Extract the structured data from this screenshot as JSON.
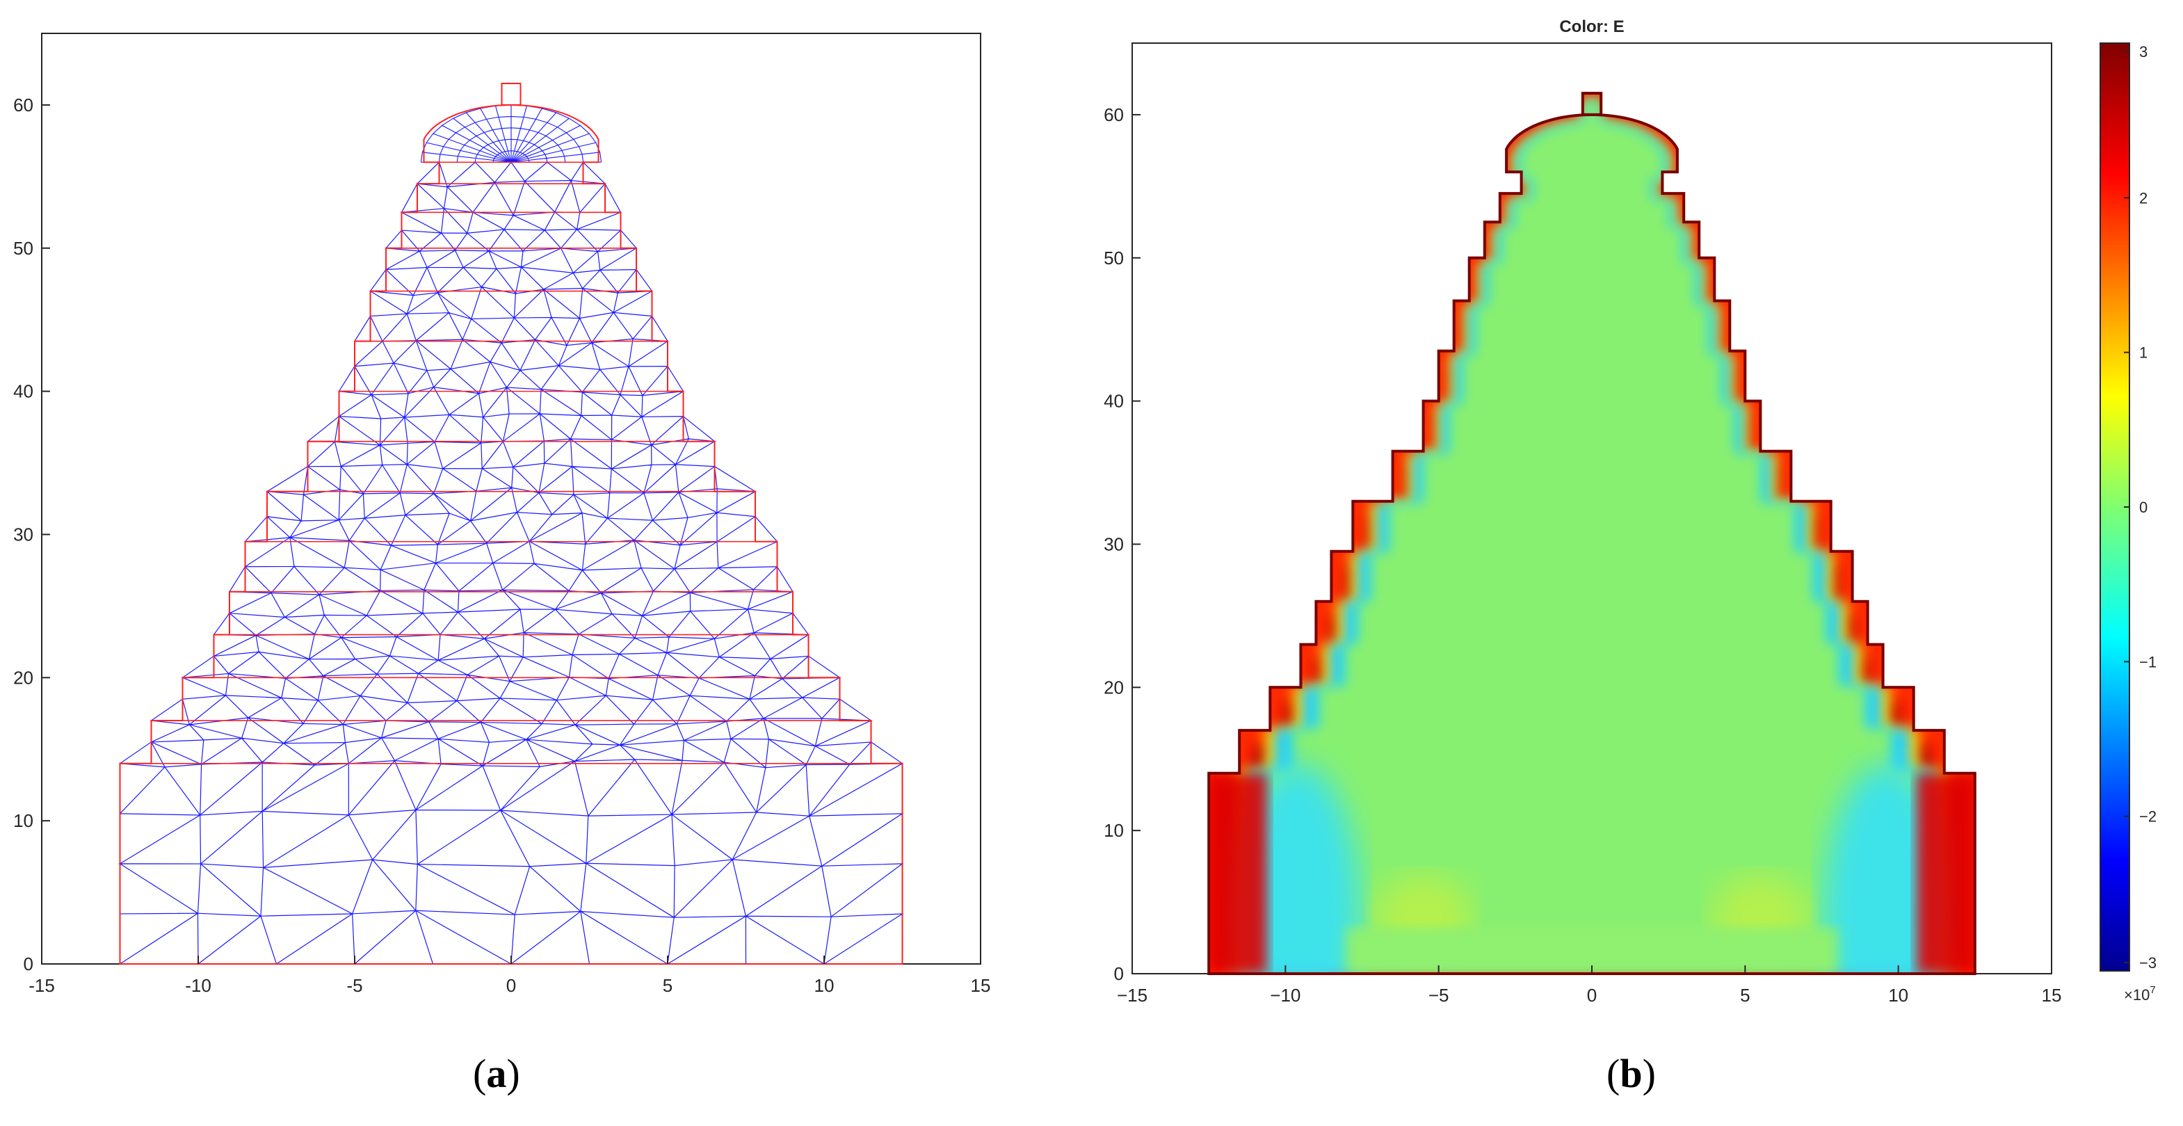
{
  "chart_data": [
    {
      "type": "mesh",
      "panel_label": "a",
      "xlim": [
        -15,
        15
      ],
      "ylim": [
        0,
        65
      ],
      "x_ticks": [
        -15,
        -10,
        -5,
        0,
        5,
        10,
        15
      ],
      "y_ticks": [
        0,
        10,
        20,
        30,
        40,
        50,
        60
      ],
      "x_tick_labels": [
        "-15",
        "-10",
        "-5",
        "0",
        "5",
        "10",
        "15"
      ],
      "y_tick_labels": [
        "0",
        "10",
        "20",
        "30",
        "40",
        "50",
        "60"
      ],
      "steps": [
        {
          "y0": 0,
          "y1": 14,
          "half_width": 12.5
        },
        {
          "y0": 14,
          "y1": 17,
          "half_width": 11.5
        },
        {
          "y0": 17,
          "y1": 20,
          "half_width": 10.5
        },
        {
          "y0": 20,
          "y1": 23,
          "half_width": 9.5
        },
        {
          "y0": 23,
          "y1": 26,
          "half_width": 9.0
        },
        {
          "y0": 26,
          "y1": 29.5,
          "half_width": 8.5
        },
        {
          "y0": 29.5,
          "y1": 33,
          "half_width": 7.8
        },
        {
          "y0": 33,
          "y1": 36.5,
          "half_width": 6.5
        },
        {
          "y0": 36.5,
          "y1": 40,
          "half_width": 5.5
        },
        {
          "y0": 40,
          "y1": 43.5,
          "half_width": 5.0
        },
        {
          "y0": 43.5,
          "y1": 47,
          "half_width": 4.5
        },
        {
          "y0": 47,
          "y1": 50,
          "half_width": 4.0
        },
        {
          "y0": 50,
          "y1": 52.5,
          "half_width": 3.5
        },
        {
          "y0": 52.5,
          "y1": 54.5,
          "half_width": 3.0
        },
        {
          "y0": 54.5,
          "y1": 56,
          "half_width": 2.3
        }
      ],
      "dome": {
        "center_y": 56.8,
        "radius": 1.8,
        "top_y": 60
      },
      "spire": {
        "half_width": 0.3,
        "y0": 60,
        "y1": 61.5
      },
      "colors": {
        "mesh": "#1a1aff",
        "boundary": "#ff2020"
      }
    },
    {
      "type": "heatmap",
      "panel_label": "b",
      "title": "Color: E",
      "xlim": [
        -15,
        15
      ],
      "ylim": [
        0,
        65
      ],
      "x_ticks": [
        -15,
        -10,
        -5,
        0,
        5,
        10,
        15
      ],
      "y_ticks": [
        0,
        10,
        20,
        30,
        40,
        50,
        60
      ],
      "x_tick_labels": [
        "−15",
        "−10",
        "−5",
        "0",
        "5",
        "10",
        "15"
      ],
      "y_tick_labels": [
        "0",
        "10",
        "20",
        "30",
        "40",
        "50",
        "60"
      ],
      "colorbar": {
        "min": -3,
        "max": 3,
        "ticks": [
          3,
          2,
          1,
          0,
          -1,
          -2,
          -3
        ],
        "tick_labels": [
          "3",
          "2",
          "1",
          "0",
          "−1",
          "−2",
          "−3"
        ],
        "multiplier": "×10",
        "multiplier_exponent": "7",
        "colormap": "jet"
      },
      "field_notes": {
        "interior": 0.0,
        "boundary_band": -1.0,
        "outer_edge": 3.0
      }
    }
  ],
  "captions": {
    "a": {
      "open": "(",
      "letter": "a",
      "close": ")"
    },
    "b": {
      "open": "(",
      "letter": "b",
      "close": ")"
    }
  }
}
